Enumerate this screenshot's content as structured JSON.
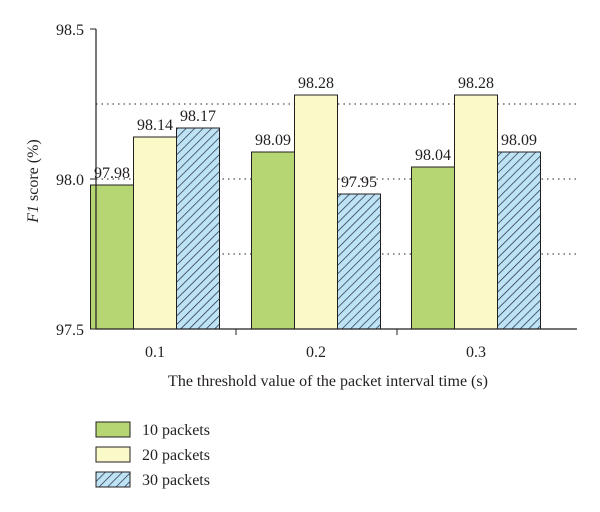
{
  "chart_data": {
    "type": "bar",
    "title": "",
    "xlabel": "The threshold value of the packet interval time (s)",
    "ylabel_prefix": "F1",
    "ylabel_rest": " score (%)",
    "ylim": [
      97.5,
      98.5
    ],
    "yticks": [
      "97.5",
      "98.0",
      "98.5"
    ],
    "reference_lines": [
      97.75,
      98.0,
      98.25
    ],
    "categories": [
      "0.1",
      "0.2",
      "0.3"
    ],
    "series": [
      {
        "name": "10 packets",
        "values": [
          97.98,
          98.09,
          98.04
        ],
        "labels": [
          "97.98",
          "98.09",
          "98.04"
        ],
        "fill": "#b5d672",
        "pattern": "solid"
      },
      {
        "name": "20 packets",
        "values": [
          98.14,
          98.28,
          98.28
        ],
        "labels": [
          "98.14",
          "98.28",
          "98.28"
        ],
        "fill": "#fafac8",
        "pattern": "solid"
      },
      {
        "name": "30 packets",
        "values": [
          98.17,
          97.95,
          98.09
        ],
        "labels": [
          "98.17",
          "97.95",
          "98.09"
        ],
        "fill": "#bde3f5",
        "pattern": "hatched"
      }
    ],
    "legend_position": "below-left",
    "grid": false
  }
}
